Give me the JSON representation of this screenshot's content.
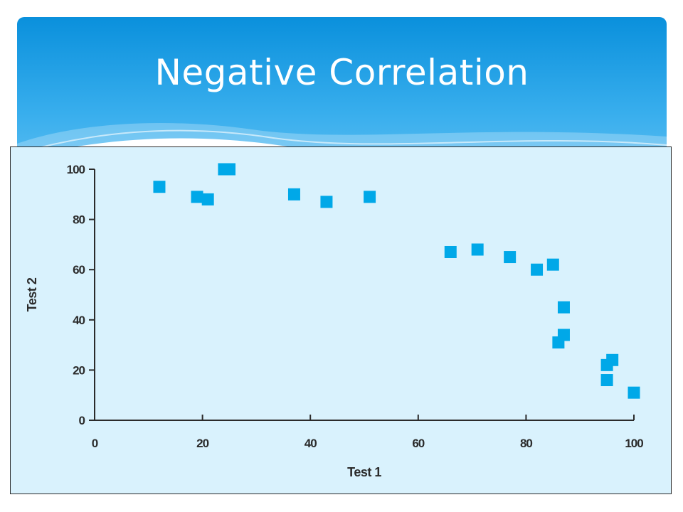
{
  "slide": {
    "title": "Negative Correlation",
    "colors": {
      "banner_top": "#0a90dc",
      "banner_bottom": "#7fcdf6",
      "plot_bg": "#d9f2fd",
      "marker": "#00a8e8"
    }
  },
  "chart_data": {
    "type": "scatter",
    "title": "",
    "xlabel": "Test 1",
    "ylabel": "Test 2",
    "xlim": [
      0,
      100
    ],
    "ylim": [
      0,
      100
    ],
    "xticks": [
      0,
      20,
      40,
      60,
      80,
      100
    ],
    "yticks": [
      0,
      20,
      40,
      60,
      80,
      100
    ],
    "grid": false,
    "marker": "square",
    "points": [
      {
        "x": 12,
        "y": 93
      },
      {
        "x": 19,
        "y": 89
      },
      {
        "x": 21,
        "y": 88
      },
      {
        "x": 24,
        "y": 100
      },
      {
        "x": 25,
        "y": 100
      },
      {
        "x": 37,
        "y": 90
      },
      {
        "x": 43,
        "y": 87
      },
      {
        "x": 51,
        "y": 89
      },
      {
        "x": 66,
        "y": 67
      },
      {
        "x": 71,
        "y": 68
      },
      {
        "x": 77,
        "y": 65
      },
      {
        "x": 82,
        "y": 60
      },
      {
        "x": 85,
        "y": 62
      },
      {
        "x": 87,
        "y": 45
      },
      {
        "x": 86,
        "y": 31
      },
      {
        "x": 87,
        "y": 34
      },
      {
        "x": 95,
        "y": 22
      },
      {
        "x": 96,
        "y": 24
      },
      {
        "x": 95,
        "y": 16
      },
      {
        "x": 100,
        "y": 11
      }
    ]
  }
}
